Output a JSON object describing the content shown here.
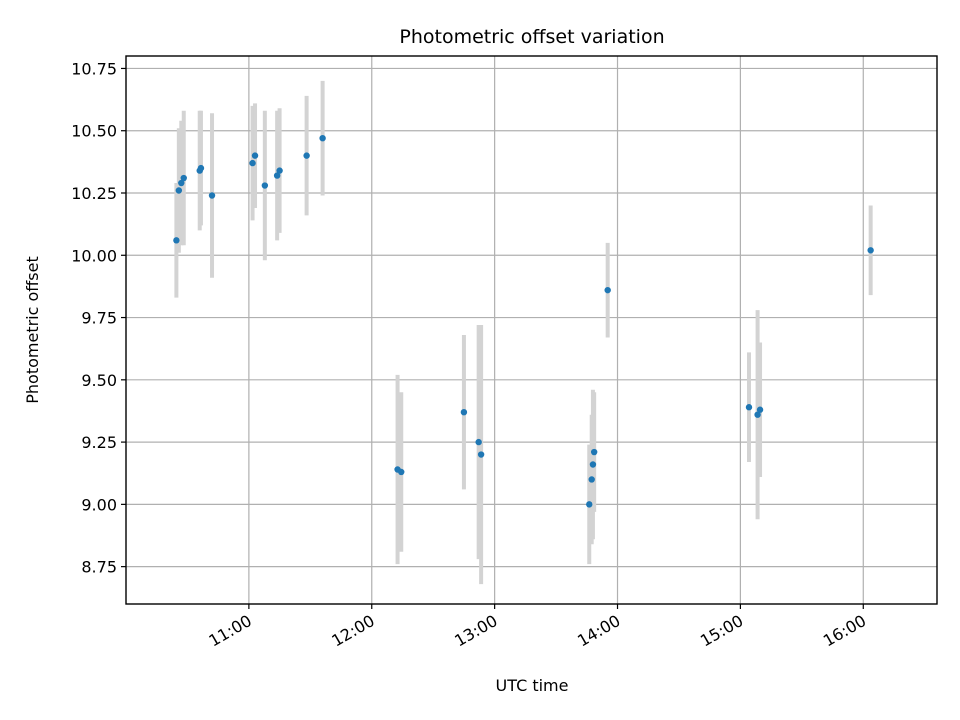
{
  "chart_data": {
    "type": "scatter",
    "title": "Photometric offset variation",
    "xlabel": "UTC time",
    "ylabel": "Photometric offset",
    "xlim_hours": [
      10.0,
      16.6
    ],
    "ylim": [
      8.6,
      10.8
    ],
    "x_ticks": [
      {
        "value": 11,
        "label": "11:00"
      },
      {
        "value": 12,
        "label": "12:00"
      },
      {
        "value": 13,
        "label": "13:00"
      },
      {
        "value": 14,
        "label": "14:00"
      },
      {
        "value": 15,
        "label": "15:00"
      },
      {
        "value": 16,
        "label": "16:00"
      }
    ],
    "y_ticks": [
      {
        "value": 8.75,
        "label": "8.75"
      },
      {
        "value": 9.0,
        "label": "9.00"
      },
      {
        "value": 9.25,
        "label": "9.25"
      },
      {
        "value": 9.5,
        "label": "9.50"
      },
      {
        "value": 9.75,
        "label": "9.75"
      },
      {
        "value": 10.0,
        "label": "10.00"
      },
      {
        "value": 10.25,
        "label": "10.25"
      },
      {
        "value": 10.5,
        "label": "10.50"
      },
      {
        "value": 10.75,
        "label": "10.75"
      }
    ],
    "grid": true,
    "point_color": "#1f77b4",
    "errorbar_color": "#d3d3d3",
    "points": [
      {
        "x": 10.41,
        "y": 10.06,
        "err": 0.23
      },
      {
        "x": 10.43,
        "y": 10.26,
        "err": 0.25
      },
      {
        "x": 10.45,
        "y": 10.29,
        "err": 0.25
      },
      {
        "x": 10.47,
        "y": 10.31,
        "err": 0.27
      },
      {
        "x": 10.6,
        "y": 10.34,
        "err": 0.24
      },
      {
        "x": 10.61,
        "y": 10.35,
        "err": 0.23
      },
      {
        "x": 10.7,
        "y": 10.24,
        "err": 0.33
      },
      {
        "x": 11.03,
        "y": 10.37,
        "err": 0.23
      },
      {
        "x": 11.05,
        "y": 10.4,
        "err": 0.21
      },
      {
        "x": 11.13,
        "y": 10.28,
        "err": 0.3
      },
      {
        "x": 11.23,
        "y": 10.32,
        "err": 0.26
      },
      {
        "x": 11.25,
        "y": 10.34,
        "err": 0.25
      },
      {
        "x": 11.47,
        "y": 10.4,
        "err": 0.24
      },
      {
        "x": 11.6,
        "y": 10.47,
        "err": 0.23
      },
      {
        "x": 12.21,
        "y": 9.14,
        "err": 0.38
      },
      {
        "x": 12.24,
        "y": 9.13,
        "err": 0.32
      },
      {
        "x": 12.75,
        "y": 9.37,
        "err": 0.31
      },
      {
        "x": 12.87,
        "y": 9.25,
        "err": 0.47
      },
      {
        "x": 12.89,
        "y": 9.2,
        "err": 0.52
      },
      {
        "x": 13.77,
        "y": 9.0,
        "err": 0.24
      },
      {
        "x": 13.79,
        "y": 9.1,
        "err": 0.26
      },
      {
        "x": 13.8,
        "y": 9.16,
        "err": 0.3
      },
      {
        "x": 13.81,
        "y": 9.21,
        "err": 0.24
      },
      {
        "x": 13.92,
        "y": 9.86,
        "err": 0.19
      },
      {
        "x": 15.07,
        "y": 9.39,
        "err": 0.22
      },
      {
        "x": 15.14,
        "y": 9.36,
        "err": 0.42
      },
      {
        "x": 15.16,
        "y": 9.38,
        "err": 0.27
      },
      {
        "x": 16.06,
        "y": 10.02,
        "err": 0.18
      }
    ]
  }
}
